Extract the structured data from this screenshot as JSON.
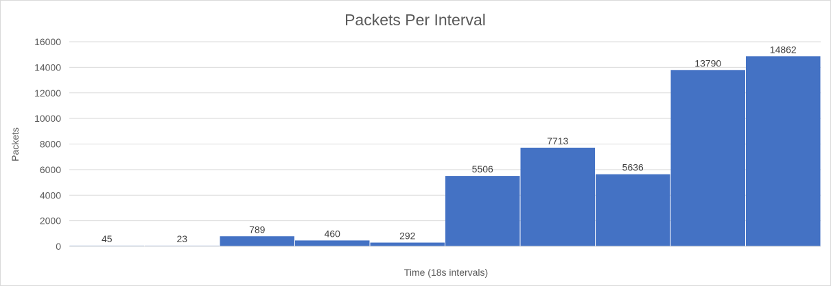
{
  "chart_data": {
    "type": "bar",
    "title": "Packets Per Interval",
    "xlabel": "Time (18s intervals)",
    "ylabel": "Packets",
    "ylim": [
      0,
      16000
    ],
    "yticks": [
      0,
      2000,
      4000,
      6000,
      8000,
      10000,
      12000,
      14000,
      16000
    ],
    "values": [
      45,
      23,
      789,
      460,
      292,
      5506,
      7713,
      5636,
      13790,
      14862
    ],
    "grid": true,
    "legend": "none",
    "bar_color": "#4472c4",
    "grid_color": "#d9d9d9"
  }
}
